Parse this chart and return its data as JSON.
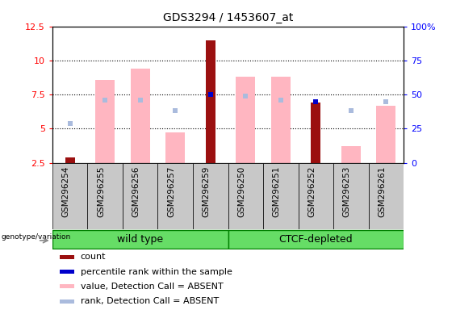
{
  "title": "GDS3294 / 1453607_at",
  "samples": [
    "GSM296254",
    "GSM296255",
    "GSM296256",
    "GSM296257",
    "GSM296259",
    "GSM296250",
    "GSM296251",
    "GSM296252",
    "GSM296253",
    "GSM296261"
  ],
  "count_values": [
    2.9,
    null,
    null,
    null,
    11.5,
    null,
    null,
    6.9,
    null,
    null
  ],
  "percentile_rank_values": [
    null,
    null,
    null,
    null,
    50.0,
    null,
    null,
    45.0,
    null,
    null
  ],
  "value_absent": [
    null,
    8.6,
    9.4,
    4.7,
    null,
    8.8,
    8.8,
    null,
    3.7,
    6.7
  ],
  "rank_absent": [
    5.4,
    7.1,
    7.1,
    6.3,
    null,
    7.4,
    7.1,
    null,
    6.3,
    7.0
  ],
  "ylim_left": [
    2.5,
    12.5
  ],
  "ylim_right": [
    0,
    100
  ],
  "yticks_left": [
    2.5,
    5.0,
    7.5,
    10.0,
    12.5
  ],
  "ytick_labels_left": [
    "2.5",
    "5",
    "7.5",
    "10",
    "12.5"
  ],
  "yticks_right": [
    0,
    25,
    50,
    75,
    100
  ],
  "ytick_labels_right": [
    "0",
    "25",
    "50",
    "75",
    "100%"
  ],
  "bar_color_count": "#9B1010",
  "bar_color_rank": "#0000CC",
  "bar_color_value_absent": "#FFB6C1",
  "bar_color_rank_absent": "#AABBDD",
  "legend_items": [
    {
      "color": "#9B1010",
      "label": "count"
    },
    {
      "color": "#0000CC",
      "label": "percentile rank within the sample"
    },
    {
      "color": "#FFB6C1",
      "label": "value, Detection Call = ABSENT"
    },
    {
      "color": "#AABBDD",
      "label": "rank, Detection Call = ABSENT"
    }
  ],
  "wild_type_indices": [
    0,
    1,
    2,
    3,
    4
  ],
  "ctcf_indices": [
    5,
    6,
    7,
    8,
    9
  ],
  "green_color": "#66DD66",
  "gray_color": "#C8C8C8"
}
